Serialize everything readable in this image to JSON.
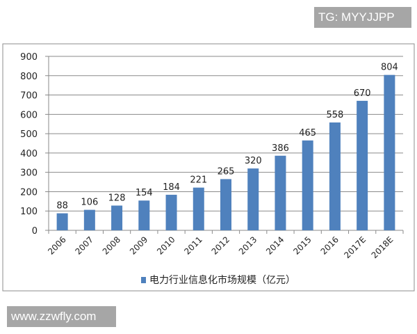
{
  "watermarks": {
    "top": "TG: MYYJJPP",
    "bottom": "www.zzwfly.com"
  },
  "chart_data": {
    "type": "bar",
    "categories": [
      "2006",
      "2007",
      "2008",
      "2009",
      "2010",
      "2011",
      "2012",
      "2013",
      "2014",
      "2015",
      "2016",
      "2017E",
      "2018E"
    ],
    "series": [
      {
        "name": "电力行业信息化市场规模（亿元）",
        "values": [
          88,
          106,
          128,
          154,
          184,
          221,
          265,
          320,
          386,
          465,
          558,
          670,
          804
        ]
      }
    ],
    "ylim": [
      0,
      900
    ],
    "yticks": [
      0,
      100,
      200,
      300,
      400,
      500,
      600,
      700,
      800,
      900
    ],
    "grid": true,
    "legend": "bottom",
    "bar_color": "#4f81bd"
  }
}
